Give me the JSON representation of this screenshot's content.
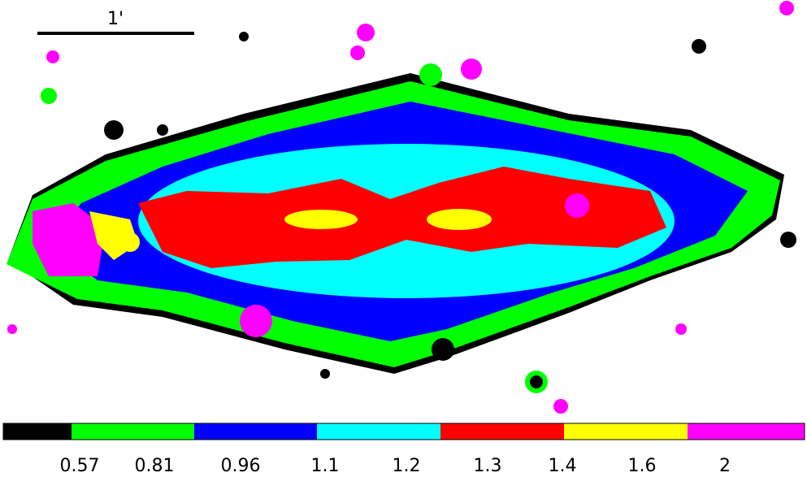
{
  "scale_bar": {
    "label": "1'"
  },
  "colorbar": {
    "labels": [
      "0.57",
      "0.81",
      "0.96",
      "1.1",
      "1.2",
      "1.3",
      "1.4",
      "1.6",
      "2"
    ]
  }
}
